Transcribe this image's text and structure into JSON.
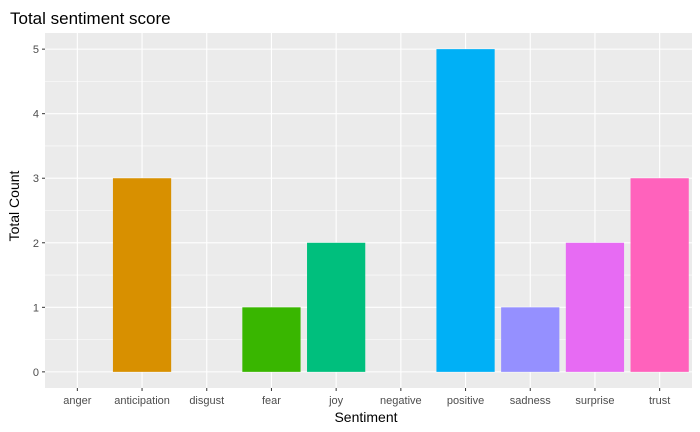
{
  "chart_data": {
    "type": "bar",
    "title": "Total sentiment score",
    "xlabel": "Sentiment",
    "ylabel": "Total Count",
    "categories": [
      "anger",
      "anticipation",
      "disgust",
      "fear",
      "joy",
      "negative",
      "positive",
      "sadness",
      "surprise",
      "trust"
    ],
    "values": [
      0,
      3,
      0,
      1,
      2,
      0,
      5,
      1,
      2,
      3
    ],
    "colors": [
      "#F8766D",
      "#D89000",
      "#A3A500",
      "#39B600",
      "#00BF7D",
      "#00BFC4",
      "#00B0F6",
      "#9590FF",
      "#E76BF3",
      "#FF62BC"
    ],
    "ylim": [
      -0.25,
      5.25
    ],
    "yticks": [
      0,
      1,
      2,
      3,
      4,
      5
    ],
    "grid": true,
    "panel_background": "#EBEBEB",
    "gridline_color": "#FFFFFF"
  }
}
